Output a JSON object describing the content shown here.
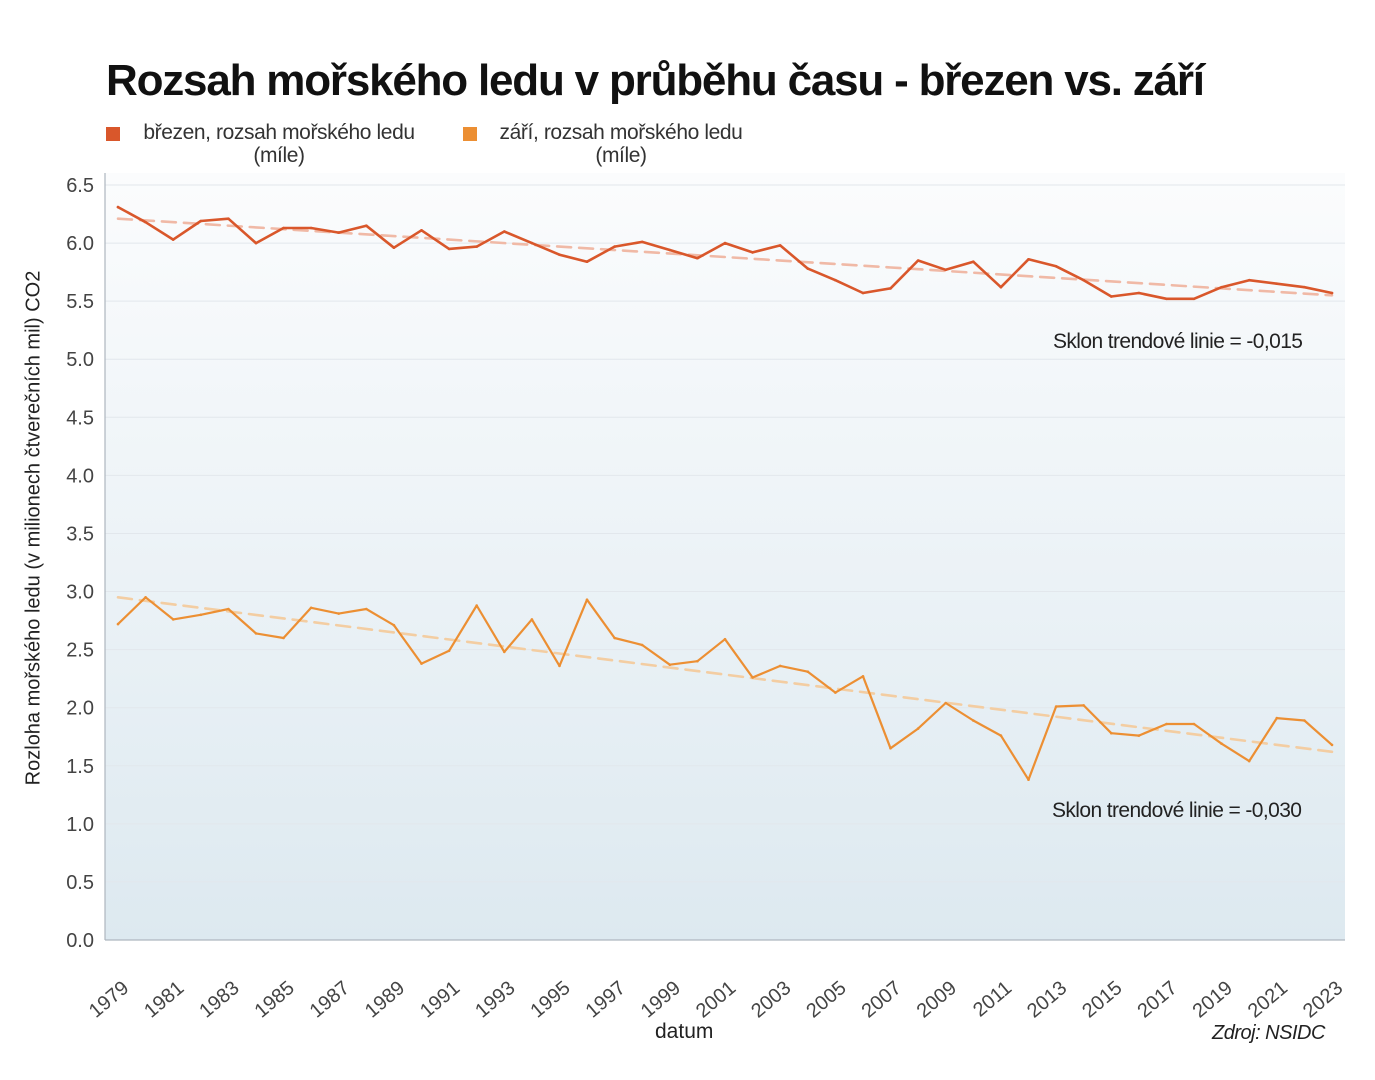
{
  "colors": {
    "march": "#d9572b",
    "march_trend": "#f0b9a6",
    "sept": "#ec8f33",
    "sept_trend": "#f3cda2",
    "grid": "#e2e7ec",
    "axis": "#aeb6bf",
    "tick_text": "#444444"
  },
  "chart_data": {
    "type": "line",
    "title": "Rozsah mořského ledu v průběhu času - březen vs. září",
    "xlabel": "datum",
    "ylabel": "Rozloha mořského ledu (v milionech čtverečních mil) CO2",
    "ylim": [
      0,
      6.5
    ],
    "yticks": [
      "0.0",
      "0.5",
      "1.0",
      "1.5",
      "2.0",
      "2.5",
      "3.0",
      "3.5",
      "4.0",
      "4.5",
      "5.0",
      "5.5",
      "6.0",
      "6.5"
    ],
    "xlim": [
      1979,
      2023
    ],
    "xticks": [
      "1979",
      "1981",
      "1983",
      "1985",
      "1987",
      "1989",
      "1991",
      "1993",
      "1995",
      "1997",
      "1999",
      "2001",
      "2003",
      "2005",
      "2007",
      "2009",
      "2011",
      "2013",
      "2015",
      "2017",
      "2019",
      "2021",
      "2023"
    ],
    "grid": true,
    "legend_position": "top-left",
    "source": "Zdroj: NSIDC",
    "x": [
      1979,
      1980,
      1981,
      1982,
      1983,
      1984,
      1985,
      1986,
      1987,
      1988,
      1989,
      1990,
      1991,
      1992,
      1993,
      1994,
      1995,
      1996,
      1997,
      1998,
      1999,
      2000,
      2001,
      2002,
      2003,
      2004,
      2005,
      2006,
      2007,
      2008,
      2009,
      2010,
      2011,
      2012,
      2013,
      2014,
      2015,
      2016,
      2017,
      2018,
      2019,
      2020,
      2021,
      2022,
      2023
    ],
    "series": [
      {
        "name": "březen, rozsah mořského ledu (míle)",
        "legend_line1": "březen, rozsah mořského ledu",
        "legend_line2": "(míle)",
        "values": [
          6.31,
          6.18,
          6.03,
          6.19,
          6.21,
          6.0,
          6.13,
          6.13,
          6.09,
          6.15,
          5.96,
          6.11,
          5.95,
          5.97,
          6.1,
          6.0,
          5.9,
          5.84,
          5.97,
          6.01,
          5.94,
          5.87,
          6.0,
          5.92,
          5.98,
          5.78,
          5.68,
          5.57,
          5.61,
          5.85,
          5.77,
          5.84,
          5.62,
          5.86,
          5.8,
          5.68,
          5.54,
          5.57,
          5.52,
          5.52,
          5.62,
          5.68,
          5.65,
          5.62,
          5.57
        ],
        "trend": {
          "start": 6.21,
          "end": 5.55
        },
        "annotation": "Sklon trendové linie = -0,015"
      },
      {
        "name": "září, rozsah mořského ledu (míle)",
        "legend_line1": "září, rozsah mořského ledu",
        "legend_line2": "(míle)",
        "values": [
          2.72,
          2.95,
          2.76,
          2.8,
          2.85,
          2.64,
          2.6,
          2.86,
          2.81,
          2.85,
          2.71,
          2.38,
          2.49,
          2.88,
          2.48,
          2.76,
          2.36,
          2.93,
          2.6,
          2.54,
          2.37,
          2.4,
          2.59,
          2.26,
          2.36,
          2.31,
          2.13,
          2.27,
          1.65,
          1.82,
          2.04,
          1.89,
          1.76,
          1.38,
          2.01,
          2.02,
          1.78,
          1.76,
          1.86,
          1.86,
          1.69,
          1.54,
          1.91,
          1.89,
          1.68
        ],
        "trend": {
          "start": 2.95,
          "end": 1.62
        },
        "annotation": "Sklon trendové linie = -0,030"
      }
    ]
  }
}
